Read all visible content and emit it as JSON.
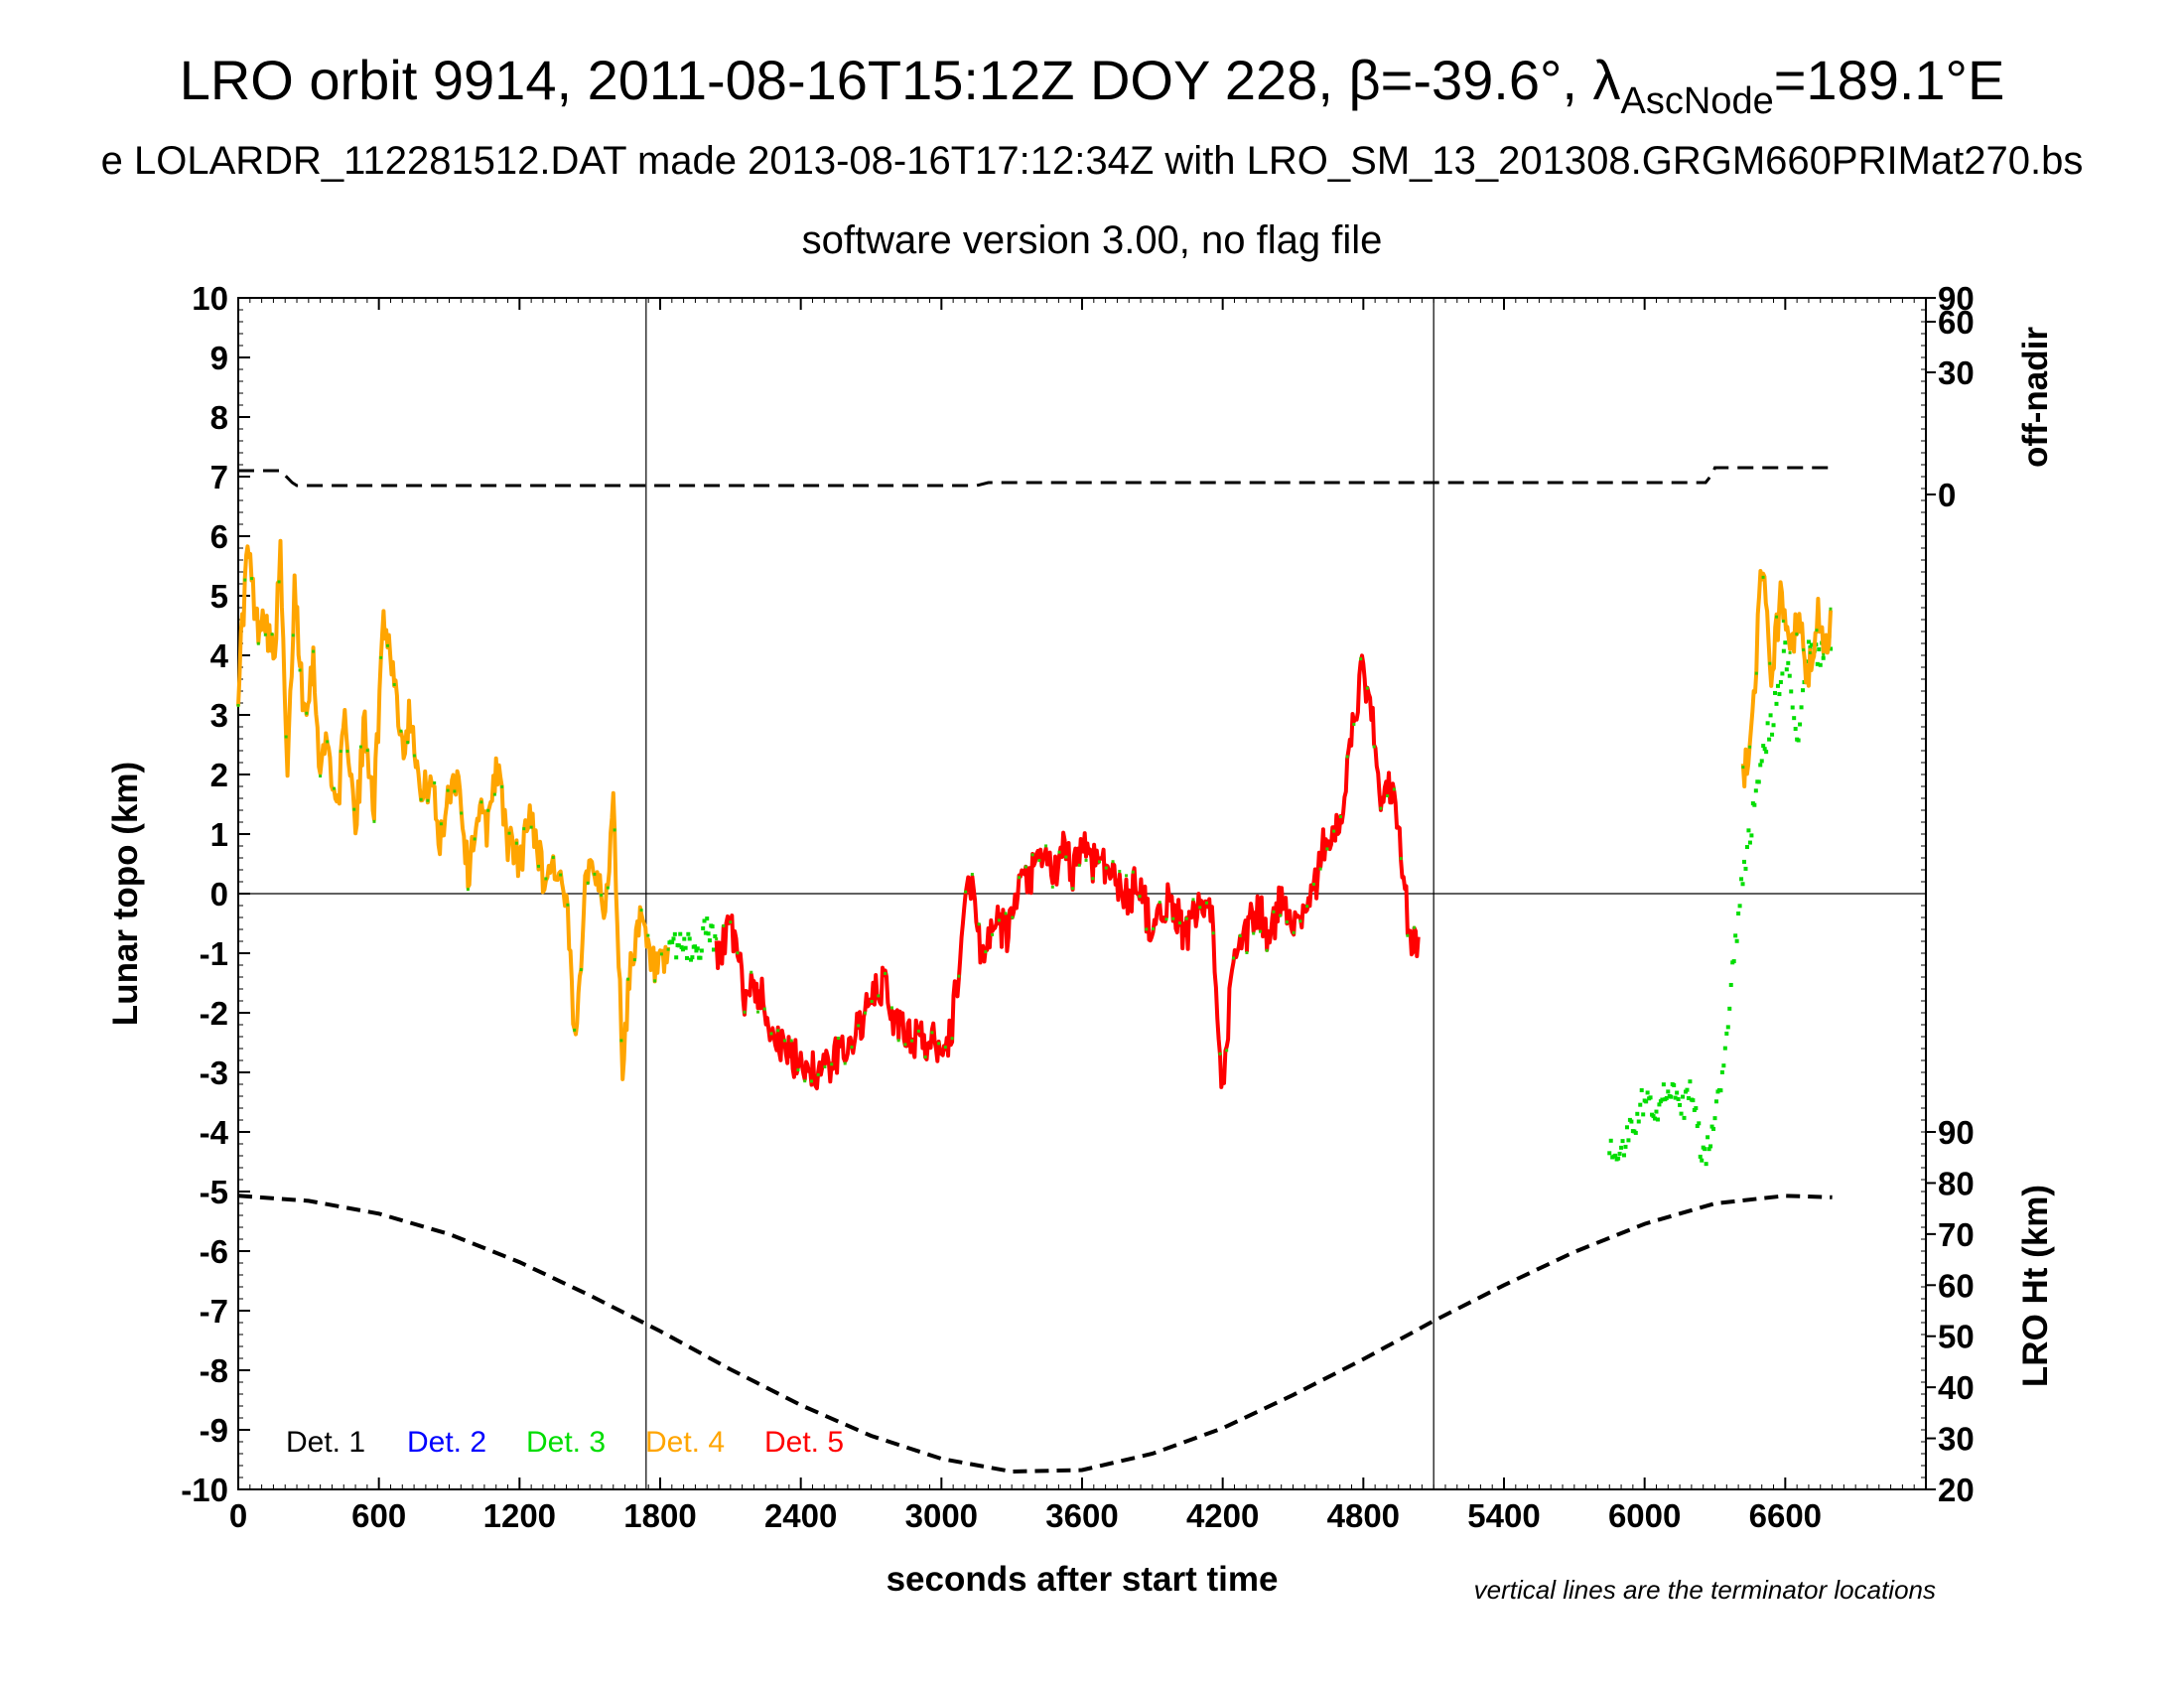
{
  "chart_data": {
    "type": "scatter",
    "title": "LRO orbit 9914, 2011-08-16T15:12Z DOY 228, β=-39.6°, λ",
    "title_subscript": "AscNode",
    "title_tail": "=189.1°E",
    "subtitle": "e LOLARDR_112281512.DAT made 2013-08-16T17:12:34Z with LRO_SM_13_201308.GRGM660PRIMat270.bs",
    "subtitle2": "software version 3.00, no flag file",
    "xlabel": "seconds after start time",
    "ylabel": "Lunar topo (km)",
    "y2label_top": "off-nadir",
    "y2label_bottom": "LRO Ht (km)",
    "note": "vertical lines are the terminator locations",
    "xlim": [
      0,
      7200
    ],
    "ylim": [
      -10,
      10
    ],
    "x_ticks": [
      "0",
      "600",
      "1200",
      "1800",
      "2400",
      "3000",
      "3600",
      "4200",
      "4800",
      "5400",
      "6000",
      "6600"
    ],
    "y_ticks": [
      "10",
      "9",
      "8",
      "7",
      "6",
      "5",
      "4",
      "3",
      "2",
      "1",
      "0",
      "-1",
      "-2",
      "-3",
      "-4",
      "-5",
      "-6",
      "-7",
      "-8",
      "-9",
      "-10"
    ],
    "offnadir_ticks": [
      "90",
      "60",
      "30",
      "0"
    ],
    "height_ticks": [
      "90",
      "80",
      "70",
      "60",
      "50",
      "40",
      "30",
      "20"
    ],
    "terminators": [
      1740,
      5100
    ],
    "zero_line": 0,
    "legend": [
      {
        "label": "Det. 1",
        "color": "#000000"
      },
      {
        "label": "Det. 2",
        "color": "#0000ff"
      },
      {
        "label": "Det. 3",
        "color": "#00dd00"
      },
      {
        "label": "Det. 4",
        "color": "#ffa500"
      },
      {
        "label": "Det. 5",
        "color": "#ff0000"
      }
    ],
    "offnadir_series": {
      "name": "off-nadir",
      "x": [
        0,
        180,
        230,
        250,
        3150,
        3200,
        6260,
        6290,
        6300,
        6800
      ],
      "y": [
        7.1,
        7.1,
        6.9,
        6.85,
        6.85,
        6.9,
        6.9,
        7.05,
        7.15,
        7.15
      ]
    },
    "height_series": {
      "name": "LRO Ht",
      "x": [
        0,
        300,
        600,
        900,
        1200,
        1500,
        1800,
        2100,
        2400,
        2700,
        3000,
        3300,
        3600,
        3900,
        4200,
        4500,
        4800,
        5100,
        5400,
        5700,
        6000,
        6300,
        6600,
        6800
      ],
      "y": [
        77.5,
        76.5,
        74,
        70,
        64.5,
        58,
        51,
        43.5,
        36.5,
        30.5,
        26,
        23.5,
        23.8,
        27,
        32,
        38.5,
        45.5,
        53,
        60,
        66.5,
        72,
        76,
        77.5,
        77.2
      ]
    },
    "topo_series": [
      {
        "name": "Det. 4",
        "x": [
          0,
          40,
          80,
          110,
          150,
          180,
          210,
          240,
          280,
          320,
          350,
          380,
          420,
          460,
          500,
          540,
          580,
          620,
          660,
          700,
          740,
          780,
          820,
          860,
          900,
          940,
          980,
          1020,
          1060,
          1100,
          1150,
          1200,
          1250,
          1300,
          1350,
          1400,
          1440,
          1480,
          1520,
          1560,
          1600,
          1640,
          1680,
          1720,
          1760,
          1800,
          1840
        ],
        "y": [
          3.5,
          5.8,
          4.5,
          4.8,
          3.9,
          5.6,
          1.8,
          5.2,
          3.1,
          3.9,
          2.1,
          2.6,
          1.4,
          3.0,
          1.0,
          2.9,
          1.5,
          4.7,
          3.8,
          2.5,
          3.1,
          1.5,
          2.0,
          0.8,
          1.8,
          2.0,
          0.3,
          1.4,
          1.1,
          2.2,
          0.9,
          0.5,
          1.4,
          0.3,
          0.5,
          -0.2,
          -2.7,
          0.4,
          0.6,
          -0.5,
          1.5,
          -2.9,
          -0.9,
          -0.5,
          -1.2,
          -1.3,
          -1.2
        ]
      },
      {
        "name": "Det. 3",
        "x": [
          1840,
          1880,
          1920,
          1960,
          2000,
          2040
        ],
        "y": [
          -1.0,
          -0.8,
          -0.9,
          -1.0,
          -0.5,
          -0.9
        ]
      },
      {
        "name": "Det. 5",
        "x": [
          2040,
          2100,
          2160,
          2200,
          2240,
          2280,
          2320,
          2360,
          2400,
          2440,
          2480,
          2520,
          2560,
          2600,
          2640,
          2680,
          2720,
          2760,
          2800,
          2840,
          2880,
          2920,
          2960,
          3000,
          3040,
          3080,
          3120,
          3160,
          3200,
          3240,
          3280,
          3320,
          3360,
          3400,
          3440,
          3480,
          3520,
          3560,
          3600,
          3640,
          3680,
          3720,
          3760,
          3800,
          3840,
          3880,
          3920,
          3960,
          4000,
          4040,
          4080,
          4120,
          4160,
          4200,
          4240,
          4280,
          4320,
          4360,
          4400,
          4440,
          4480,
          4520,
          4560,
          4600,
          4640,
          4680,
          4720,
          4760,
          4800,
          4840,
          4880,
          4920,
          4960,
          5000,
          5040
        ],
        "y": [
          -1.1,
          -0.5,
          -1.7,
          -1.5,
          -1.8,
          -2.3,
          -2.6,
          -2.8,
          -2.8,
          -2.9,
          -3.0,
          -2.9,
          -2.7,
          -2.5,
          -2.3,
          -2.0,
          -1.7,
          -1.5,
          -2.2,
          -2.3,
          -2.4,
          -2.5,
          -2.5,
          -2.5,
          -2.4,
          -1.0,
          0.4,
          -0.8,
          -0.9,
          -0.5,
          -0.7,
          -0.1,
          0.2,
          0.4,
          0.6,
          0.3,
          0.7,
          0.4,
          0.9,
          0.5,
          0.7,
          0.3,
          0.1,
          -0.1,
          0.3,
          -0.4,
          -0.6,
          -0.1,
          -0.3,
          -0.7,
          -0.4,
          -0.2,
          -0.6,
          -3.3,
          -1.3,
          -1.0,
          -0.5,
          -0.3,
          -0.8,
          -0.2,
          -0.2,
          -0.5,
          -0.1,
          0.2,
          1.0,
          0.9,
          1.6,
          2.9,
          3.8,
          2.8,
          1.5,
          1.8,
          0.7,
          -0.8,
          -1.0
        ]
      },
      {
        "name": "Det. 3",
        "x": [
          5850,
          5900,
          5950,
          6000,
          6050,
          6100,
          6150,
          6200,
          6250,
          6300,
          6350,
          6400,
          6450,
          6500,
          6550,
          6600,
          6650,
          6700,
          6750,
          6800
        ],
        "y": [
          -4.2,
          -4.3,
          -3.9,
          -3.4,
          -3.6,
          -3.2,
          -3.7,
          -3.3,
          -4.5,
          -3.8,
          -2.5,
          -0.3,
          1.0,
          2.3,
          3.0,
          4.0,
          2.5,
          4.3,
          3.9,
          4.4
        ]
      },
      {
        "name": "Det. 4",
        "x": [
          6420,
          6460,
          6500,
          6540,
          6580,
          6620,
          6660,
          6700,
          6740,
          6780,
          6800
        ],
        "y": [
          2.0,
          2.8,
          5.6,
          3.8,
          4.9,
          4.2,
          4.5,
          3.6,
          4.8,
          4.0,
          5.0
        ]
      }
    ]
  }
}
